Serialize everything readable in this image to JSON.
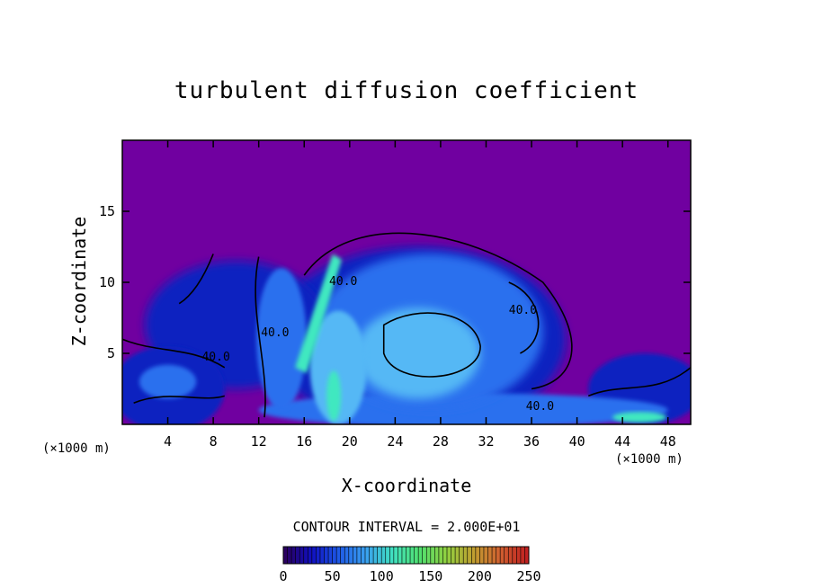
{
  "chart_data": {
    "type": "heatmap",
    "title": "turbulent diffusion coefficient",
    "xlabel": "X-coordinate",
    "ylabel": "Z-coordinate",
    "x_unit": "(×1000 m)",
    "y_unit": "(×1000 m)",
    "xlim": [
      0,
      50
    ],
    "ylim": [
      0,
      20
    ],
    "x_ticks": [
      4,
      8,
      12,
      16,
      20,
      24,
      28,
      32,
      36,
      40,
      44,
      48
    ],
    "y_ticks": [
      5,
      10,
      15
    ],
    "contour_interval_text": "CONTOUR INTERVAL = 2.000E+01",
    "contour_labels": [
      {
        "text": "40.0",
        "x": 12.2,
        "z": 6.2
      },
      {
        "text": "40.0",
        "x": 7.0,
        "z": 4.5
      },
      {
        "text": "40.0",
        "x": 18.2,
        "z": 9.8
      },
      {
        "text": "40.0",
        "x": 34.0,
        "z": 7.8
      },
      {
        "text": "40.0",
        "x": 35.5,
        "z": 1.0
      }
    ],
    "colorbar": {
      "min": 0,
      "max": 250,
      "ticks": [
        "0",
        "50",
        "100",
        "150",
        "200",
        "250"
      ],
      "colors": [
        "#2a0060",
        "#1010c0",
        "#1e5ae6",
        "#3aa0f0",
        "#40e0c0",
        "#50e070",
        "#90d040",
        "#c0a030",
        "#d06030",
        "#c02020"
      ]
    },
    "colors": {
      "background": "#7000a0",
      "low": "#1020c0",
      "mid": "#2a70ee",
      "high": "#55b8f5",
      "peak": "#40e8c0"
    }
  }
}
